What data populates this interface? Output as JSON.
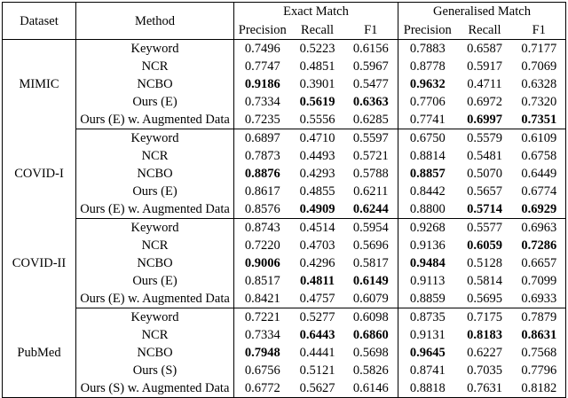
{
  "table": {
    "header": {
      "dataset": "Dataset",
      "method": "Method",
      "group_labels": [
        "Exact Match",
        "Generalised Match"
      ],
      "metrics": [
        "Precision",
        "Recall",
        "F1"
      ]
    },
    "groups": [
      {
        "dataset": "MIMIC",
        "rows": [
          {
            "method": "Keyword",
            "cells": [
              {
                "v": "0.7496",
                "b": false
              },
              {
                "v": "0.5223",
                "b": false
              },
              {
                "v": "0.6156",
                "b": false
              },
              {
                "v": "0.7883",
                "b": false
              },
              {
                "v": "0.6587",
                "b": false
              },
              {
                "v": "0.7177",
                "b": false
              }
            ]
          },
          {
            "method": "NCR",
            "cells": [
              {
                "v": "0.7747",
                "b": false
              },
              {
                "v": "0.4851",
                "b": false
              },
              {
                "v": "0.5967",
                "b": false
              },
              {
                "v": "0.8778",
                "b": false
              },
              {
                "v": "0.5917",
                "b": false
              },
              {
                "v": "0.7069",
                "b": false
              }
            ]
          },
          {
            "method": "NCBO",
            "cells": [
              {
                "v": "0.9186",
                "b": true
              },
              {
                "v": "0.3901",
                "b": false
              },
              {
                "v": "0.5477",
                "b": false
              },
              {
                "v": "0.9632",
                "b": true
              },
              {
                "v": "0.4711",
                "b": false
              },
              {
                "v": "0.6328",
                "b": false
              }
            ]
          },
          {
            "method": "Ours (E)",
            "cells": [
              {
                "v": "0.7334",
                "b": false
              },
              {
                "v": "0.5619",
                "b": true
              },
              {
                "v": "0.6363",
                "b": true
              },
              {
                "v": "0.7706",
                "b": false
              },
              {
                "v": "0.6972",
                "b": false
              },
              {
                "v": "0.7320",
                "b": false
              }
            ]
          },
          {
            "method": "Ours (E) w. Augmented Data",
            "cells": [
              {
                "v": "0.7235",
                "b": false
              },
              {
                "v": "0.5556",
                "b": false
              },
              {
                "v": "0.6285",
                "b": false
              },
              {
                "v": "0.7741",
                "b": false
              },
              {
                "v": "0.6997",
                "b": true
              },
              {
                "v": "0.7351",
                "b": true
              }
            ]
          }
        ]
      },
      {
        "dataset": "COVID-I",
        "rows": [
          {
            "method": "Keyword",
            "cells": [
              {
                "v": "0.6897",
                "b": false
              },
              {
                "v": "0.4710",
                "b": false
              },
              {
                "v": "0.5597",
                "b": false
              },
              {
                "v": "0.6750",
                "b": false
              },
              {
                "v": "0.5579",
                "b": false
              },
              {
                "v": "0.6109",
                "b": false
              }
            ]
          },
          {
            "method": "NCR",
            "cells": [
              {
                "v": "0.7873",
                "b": false
              },
              {
                "v": "0.4493",
                "b": false
              },
              {
                "v": "0.5721",
                "b": false
              },
              {
                "v": "0.8814",
                "b": false
              },
              {
                "v": "0.5481",
                "b": false
              },
              {
                "v": "0.6758",
                "b": false
              }
            ]
          },
          {
            "method": "NCBO",
            "cells": [
              {
                "v": "0.8876",
                "b": true
              },
              {
                "v": "0.4293",
                "b": false
              },
              {
                "v": "0.5788",
                "b": false
              },
              {
                "v": "0.8857",
                "b": true
              },
              {
                "v": "0.5070",
                "b": false
              },
              {
                "v": "0.6449",
                "b": false
              }
            ]
          },
          {
            "method": "Ours (E)",
            "cells": [
              {
                "v": "0.8617",
                "b": false
              },
              {
                "v": "0.4855",
                "b": false
              },
              {
                "v": "0.6211",
                "b": false
              },
              {
                "v": "0.8442",
                "b": false
              },
              {
                "v": "0.5657",
                "b": false
              },
              {
                "v": "0.6774",
                "b": false
              }
            ]
          },
          {
            "method": "Ours (E) w. Augmented Data",
            "cells": [
              {
                "v": "0.8576",
                "b": false
              },
              {
                "v": "0.4909",
                "b": true
              },
              {
                "v": "0.6244",
                "b": true
              },
              {
                "v": "0.8800",
                "b": false
              },
              {
                "v": "0.5714",
                "b": true
              },
              {
                "v": "0.6929",
                "b": true
              }
            ]
          }
        ]
      },
      {
        "dataset": "COVID-II",
        "rows": [
          {
            "method": "Keyword",
            "cells": [
              {
                "v": "0.8743",
                "b": false
              },
              {
                "v": "0.4514",
                "b": false
              },
              {
                "v": "0.5954",
                "b": false
              },
              {
                "v": "0.9268",
                "b": false
              },
              {
                "v": "0.5577",
                "b": false
              },
              {
                "v": "0.6963",
                "b": false
              }
            ]
          },
          {
            "method": "NCR",
            "cells": [
              {
                "v": "0.7220",
                "b": false
              },
              {
                "v": "0.4703",
                "b": false
              },
              {
                "v": "0.5696",
                "b": false
              },
              {
                "v": "0.9136",
                "b": false
              },
              {
                "v": "0.6059",
                "b": true
              },
              {
                "v": "0.7286",
                "b": true
              }
            ]
          },
          {
            "method": "NCBO",
            "cells": [
              {
                "v": "0.9006",
                "b": true
              },
              {
                "v": "0.4296",
                "b": false
              },
              {
                "v": "0.5817",
                "b": false
              },
              {
                "v": "0.9484",
                "b": true
              },
              {
                "v": "0.5128",
                "b": false
              },
              {
                "v": "0.6657",
                "b": false
              }
            ]
          },
          {
            "method": "Ours (E)",
            "cells": [
              {
                "v": "0.8517",
                "b": false
              },
              {
                "v": "0.4811",
                "b": true
              },
              {
                "v": "0.6149",
                "b": true
              },
              {
                "v": "0.9113",
                "b": false
              },
              {
                "v": "0.5814",
                "b": false
              },
              {
                "v": "0.7099",
                "b": false
              }
            ]
          },
          {
            "method": "Ours (E) w. Augmented Data",
            "cells": [
              {
                "v": "0.8421",
                "b": false
              },
              {
                "v": "0.4757",
                "b": false
              },
              {
                "v": "0.6079",
                "b": false
              },
              {
                "v": "0.8859",
                "b": false
              },
              {
                "v": "0.5695",
                "b": false
              },
              {
                "v": "0.6933",
                "b": false
              }
            ]
          }
        ]
      },
      {
        "dataset": "PubMed",
        "rows": [
          {
            "method": "Keyword",
            "cells": [
              {
                "v": "0.7221",
                "b": false
              },
              {
                "v": "0.5277",
                "b": false
              },
              {
                "v": "0.6098",
                "b": false
              },
              {
                "v": "0.8735",
                "b": false
              },
              {
                "v": "0.7175",
                "b": false
              },
              {
                "v": "0.7879",
                "b": false
              }
            ]
          },
          {
            "method": "NCR",
            "cells": [
              {
                "v": "0.7334",
                "b": false
              },
              {
                "v": "0.6443",
                "b": true
              },
              {
                "v": "0.6860",
                "b": true
              },
              {
                "v": "0.9131",
                "b": false
              },
              {
                "v": "0.8183",
                "b": true
              },
              {
                "v": "0.8631",
                "b": true
              }
            ]
          },
          {
            "method": "NCBO",
            "cells": [
              {
                "v": "0.7948",
                "b": true
              },
              {
                "v": "0.4441",
                "b": false
              },
              {
                "v": "0.5698",
                "b": false
              },
              {
                "v": "0.9645",
                "b": true
              },
              {
                "v": "0.6227",
                "b": false
              },
              {
                "v": "0.7568",
                "b": false
              }
            ]
          },
          {
            "method": "Ours (S)",
            "cells": [
              {
                "v": "0.6756",
                "b": false
              },
              {
                "v": "0.5121",
                "b": false
              },
              {
                "v": "0.5826",
                "b": false
              },
              {
                "v": "0.8741",
                "b": false
              },
              {
                "v": "0.7035",
                "b": false
              },
              {
                "v": "0.7796",
                "b": false
              }
            ]
          },
          {
            "method": "Ours (S) w. Augmented Data",
            "cells": [
              {
                "v": "0.6772",
                "b": false
              },
              {
                "v": "0.5627",
                "b": false
              },
              {
                "v": "0.6146",
                "b": false
              },
              {
                "v": "0.8818",
                "b": false
              },
              {
                "v": "0.7631",
                "b": false
              },
              {
                "v": "0.8182",
                "b": false
              }
            ]
          }
        ]
      }
    ]
  }
}
